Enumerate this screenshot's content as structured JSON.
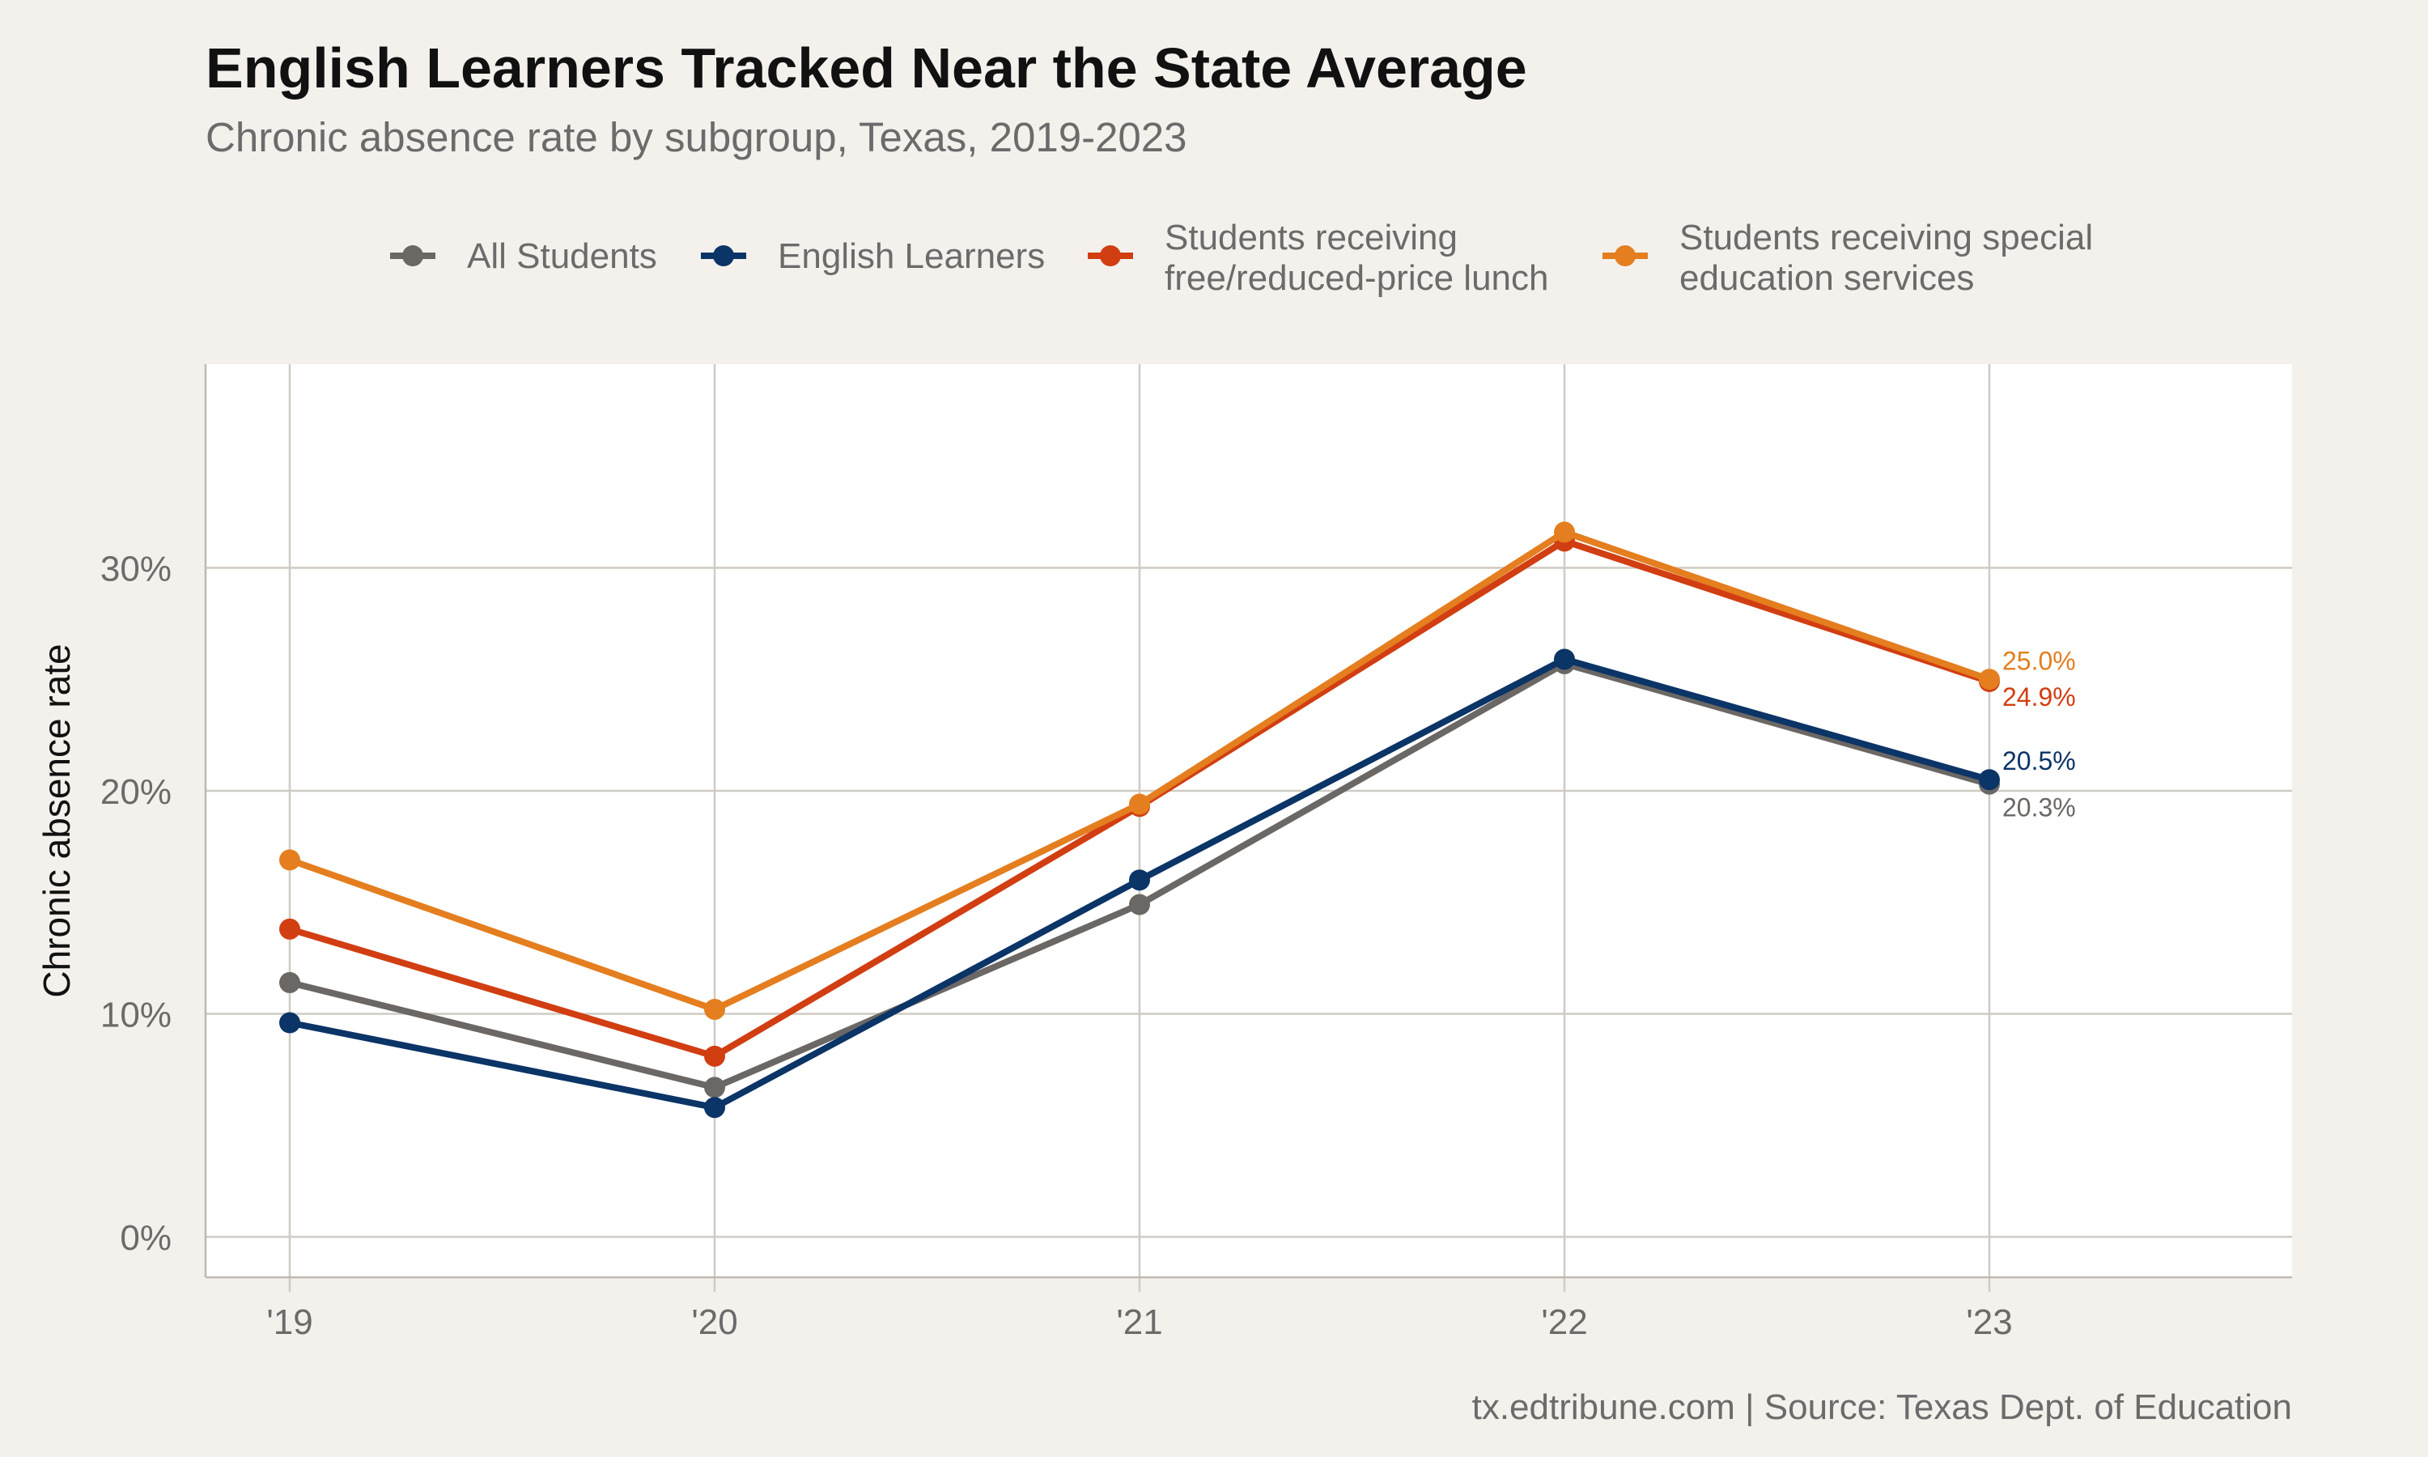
{
  "title": "English Learners Tracked Near the State Average",
  "subtitle": "Chronic absence rate by subgroup, Texas, 2019-2023",
  "caption": "tx.edtribune.com | Source: Texas Dept. of Education",
  "colors": {
    "background": "#f4f1ec",
    "panel": "#ffffff",
    "grid": "#cfcbc4",
    "axis_text": "#6b6b6b"
  },
  "chart_data": {
    "type": "line",
    "x": [
      "'19",
      "'20",
      "'21",
      "'22",
      "'23"
    ],
    "ylabel": "Chronic absence rate",
    "xlabel": "",
    "ylim": [
      0,
      38
    ],
    "y_ticks": [
      0,
      10,
      20,
      30
    ],
    "y_tick_labels": [
      "0%",
      "10%",
      "20%",
      "30%"
    ],
    "grid": true,
    "legend_position": "top",
    "series": [
      {
        "name": "All Students",
        "color": "#6b6764",
        "values": [
          11.4,
          6.7,
          14.9,
          25.7,
          20.3
        ],
        "end_label": "20.3%"
      },
      {
        "name": "English Learners",
        "color": "#0b3467",
        "values": [
          9.6,
          5.8,
          16.0,
          25.9,
          20.5
        ],
        "end_label": "20.5%"
      },
      {
        "name": "Students receiving free/reduced-price lunch",
        "legend_lines": [
          "Students receiving",
          "free/reduced-price lunch"
        ],
        "color": "#d13e12",
        "values": [
          13.8,
          8.1,
          19.3,
          31.2,
          24.9
        ],
        "end_label": "24.9%"
      },
      {
        "name": "Students receiving special education services",
        "legend_lines": [
          "Students receiving special",
          "education services"
        ],
        "color": "#e47e1f",
        "values": [
          16.9,
          10.2,
          19.4,
          31.6,
          25.0
        ],
        "end_label": "25.0%"
      }
    ]
  }
}
